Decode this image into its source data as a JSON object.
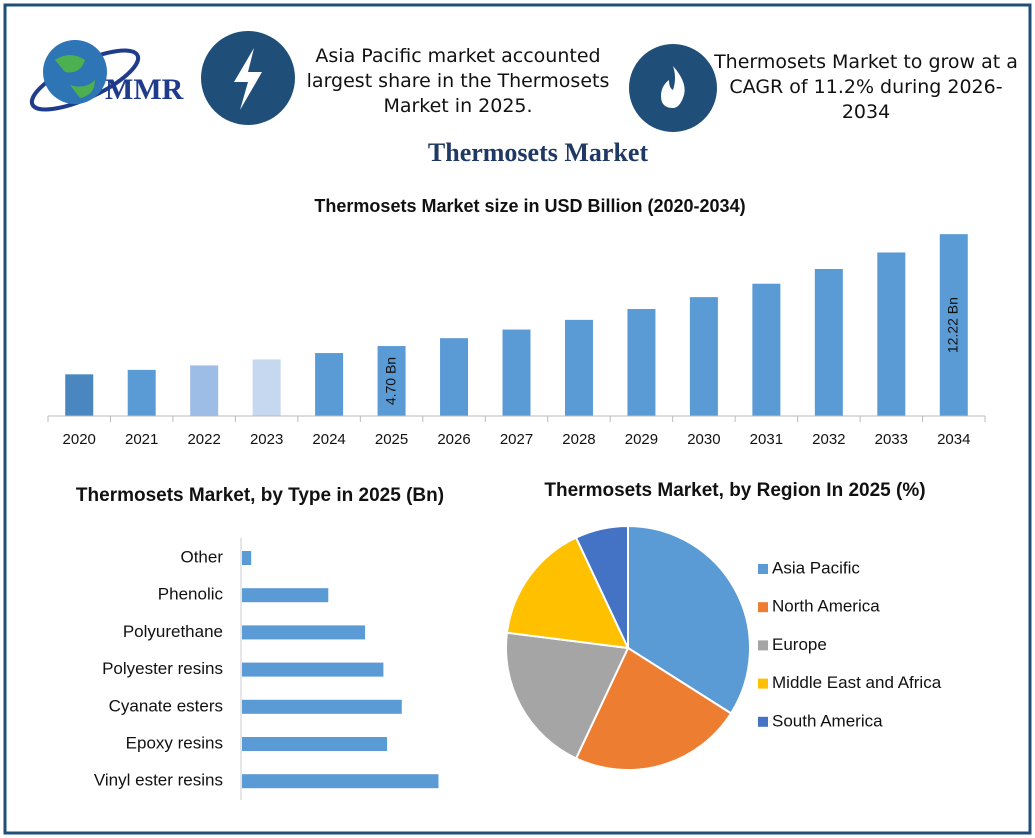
{
  "header": {
    "brand": "MMR",
    "note_left": "Asia Pacific market accounted largest share in the Thermosets Market in 2025.",
    "note_right": "Thermosets Market to grow at a CAGR of 11.2% during 2026-2034",
    "title": "Thermosets Market"
  },
  "chart_data": [
    {
      "type": "bar",
      "title": "Thermosets Market size in USD Billion (2020-2034)",
      "categories": [
        "2020",
        "2021",
        "2022",
        "2023",
        "2024",
        "2025",
        "2026",
        "2027",
        "2028",
        "2029",
        "2030",
        "2031",
        "2032",
        "2033",
        "2034"
      ],
      "values": [
        2.8,
        3.1,
        3.4,
        3.8,
        4.23,
        4.7,
        5.23,
        5.81,
        6.46,
        7.19,
        7.99,
        8.89,
        9.88,
        10.99,
        12.22
      ],
      "value_labels": [
        null,
        null,
        null,
        null,
        null,
        "4.70 Bn",
        null,
        null,
        null,
        null,
        null,
        null,
        null,
        null,
        "12.22 Bn"
      ],
      "colors": [
        "#4a86c0",
        "#5b9bd5",
        "#9dbde6",
        "#c5d8ef",
        "#5b9bd5",
        "#5b9bd5",
        "#5b9bd5",
        "#5b9bd5",
        "#5b9bd5",
        "#5b9bd5",
        "#5b9bd5",
        "#5b9bd5",
        "#5b9bd5",
        "#5b9bd5",
        "#5b9bd5"
      ],
      "ylim": [
        0,
        12.5
      ]
    },
    {
      "type": "barh",
      "title": "Thermosets Market, by Type in 2025 (Bn)",
      "categories": [
        "Other",
        "Phenolic",
        "Polyurethane",
        "Polyester resins",
        "Cyanate esters",
        "Epoxy resins",
        "Vinyl ester resins"
      ],
      "values": [
        0.05,
        0.47,
        0.67,
        0.77,
        0.87,
        0.79,
        1.07
      ],
      "color": "#5b9bd5",
      "xlim": [
        0,
        1.1
      ]
    },
    {
      "type": "pie",
      "title": "Thermosets Market, by Region In 2025 (%)",
      "categories": [
        "Asia Pacific",
        "North America",
        "Europe",
        "Middle East and Africa",
        "South America"
      ],
      "values": [
        34,
        23,
        20,
        16,
        7
      ],
      "colors": [
        "#5b9bd5",
        "#ed7d31",
        "#a5a5a5",
        "#ffc000",
        "#4472c4"
      ],
      "legend": "right"
    }
  ]
}
